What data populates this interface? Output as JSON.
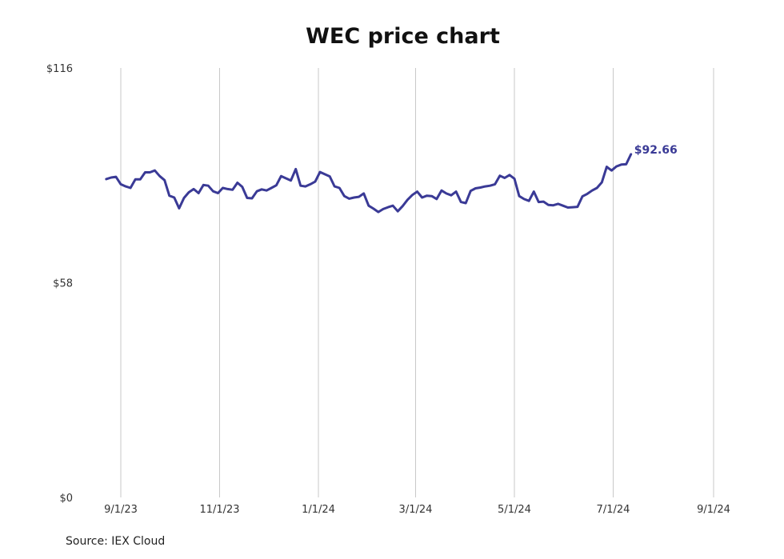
{
  "chart_data": {
    "type": "line",
    "title": "WEC price chart",
    "source": "Source: IEX Cloud",
    "ylim": [
      0,
      116
    ],
    "y_ticks": [
      {
        "value": 116,
        "label": "$116"
      },
      {
        "value": 58,
        "label": "$58"
      },
      {
        "value": 0,
        "label": "$0"
      }
    ],
    "x_ticks": [
      "9/1/23",
      "11/1/23",
      "1/1/24",
      "3/1/24",
      "5/1/24",
      "7/1/24",
      "9/1/24"
    ],
    "grid": "vertical",
    "last_value_label": "$92.66",
    "series": [
      {
        "color": "#3a3a96",
        "points": [
          [
            "8/23/23",
            86.0
          ],
          [
            "8/26/23",
            86.4
          ],
          [
            "8/29/23",
            86.6
          ],
          [
            "9/1/23",
            84.6
          ],
          [
            "9/4/23",
            84.0
          ],
          [
            "9/7/23",
            83.6
          ],
          [
            "9/10/23",
            85.9
          ],
          [
            "9/13/23",
            85.9
          ],
          [
            "9/16/23",
            87.8
          ],
          [
            "9/19/23",
            87.8
          ],
          [
            "9/22/23",
            88.3
          ],
          [
            "9/25/23",
            86.8
          ],
          [
            "9/28/23",
            85.7
          ],
          [
            "10/1/23",
            81.5
          ],
          [
            "10/4/23",
            81.0
          ],
          [
            "10/7/23",
            78.1
          ],
          [
            "10/10/23",
            80.9
          ],
          [
            "10/13/23",
            82.4
          ],
          [
            "10/16/23",
            83.3
          ],
          [
            "10/19/23",
            82.2
          ],
          [
            "10/22/23",
            84.4
          ],
          [
            "10/25/23",
            84.2
          ],
          [
            "10/28/23",
            82.7
          ],
          [
            "10/31/23",
            82.2
          ],
          [
            "11/3/23",
            83.6
          ],
          [
            "11/6/23",
            83.3
          ],
          [
            "11/9/23",
            83.1
          ],
          [
            "11/12/23",
            85.0
          ],
          [
            "11/15/23",
            83.9
          ],
          [
            "11/18/23",
            80.9
          ],
          [
            "11/21/23",
            80.8
          ],
          [
            "11/24/23",
            82.7
          ],
          [
            "11/27/23",
            83.2
          ],
          [
            "11/30/23",
            82.9
          ],
          [
            "12/3/23",
            83.6
          ],
          [
            "12/6/23",
            84.3
          ],
          [
            "12/9/23",
            86.8
          ],
          [
            "12/12/23",
            86.2
          ],
          [
            "12/15/23",
            85.6
          ],
          [
            "12/18/23",
            88.7
          ],
          [
            "12/21/23",
            84.2
          ],
          [
            "12/24/23",
            84.0
          ],
          [
            "12/27/23",
            84.6
          ],
          [
            "12/30/23",
            85.3
          ],
          [
            "1/2/24",
            87.9
          ],
          [
            "1/5/24",
            87.3
          ],
          [
            "1/8/24",
            86.7
          ],
          [
            "1/11/24",
            84.0
          ],
          [
            "1/14/24",
            83.6
          ],
          [
            "1/17/24",
            81.4
          ],
          [
            "1/20/24",
            80.7
          ],
          [
            "1/23/24",
            81.0
          ],
          [
            "1/26/24",
            81.2
          ],
          [
            "1/29/24",
            82.1
          ],
          [
            "2/1/24",
            78.8
          ],
          [
            "2/4/24",
            78.0
          ],
          [
            "2/7/24",
            77.1
          ],
          [
            "2/10/24",
            77.9
          ],
          [
            "2/13/24",
            78.4
          ],
          [
            "2/16/24",
            78.8
          ],
          [
            "2/19/24",
            77.3
          ],
          [
            "2/22/24",
            78.7
          ],
          [
            "2/25/24",
            80.4
          ],
          [
            "2/28/24",
            81.7
          ],
          [
            "3/2/24",
            82.6
          ],
          [
            "3/5/24",
            81.0
          ],
          [
            "3/8/24",
            81.5
          ],
          [
            "3/11/24",
            81.4
          ],
          [
            "3/14/24",
            80.6
          ],
          [
            "3/17/24",
            82.9
          ],
          [
            "3/20/24",
            82.1
          ],
          [
            "3/23/24",
            81.6
          ],
          [
            "3/26/24",
            82.6
          ],
          [
            "3/29/24",
            79.8
          ],
          [
            "4/1/24",
            79.5
          ],
          [
            "4/4/24",
            82.8
          ],
          [
            "4/7/24",
            83.5
          ],
          [
            "4/10/24",
            83.7
          ],
          [
            "4/13/24",
            84.0
          ],
          [
            "4/16/24",
            84.2
          ],
          [
            "4/19/24",
            84.6
          ],
          [
            "4/22/24",
            86.9
          ],
          [
            "4/25/24",
            86.3
          ],
          [
            "4/28/24",
            87.1
          ],
          [
            "5/1/24",
            86.1
          ],
          [
            "5/4/24",
            81.4
          ],
          [
            "5/7/24",
            80.6
          ],
          [
            "5/10/24",
            80.1
          ],
          [
            "5/13/24",
            82.6
          ],
          [
            "5/16/24",
            79.8
          ],
          [
            "5/19/24",
            79.9
          ],
          [
            "5/22/24",
            79.0
          ],
          [
            "5/25/24",
            78.9
          ],
          [
            "5/28/24",
            79.3
          ],
          [
            "5/31/24",
            78.8
          ],
          [
            "6/3/24",
            78.3
          ],
          [
            "6/6/24",
            78.4
          ],
          [
            "6/9/24",
            78.5
          ],
          [
            "6/12/24",
            81.3
          ],
          [
            "6/15/24",
            82.0
          ],
          [
            "6/18/24",
            82.9
          ],
          [
            "6/21/24",
            83.6
          ],
          [
            "6/24/24",
            85.1
          ],
          [
            "6/27/24",
            89.3
          ],
          [
            "6/30/24",
            88.3
          ],
          [
            "7/3/24",
            89.4
          ],
          [
            "7/6/24",
            89.9
          ],
          [
            "7/9/24",
            90.0
          ],
          [
            "7/12/24",
            92.7
          ]
        ]
      }
    ]
  }
}
